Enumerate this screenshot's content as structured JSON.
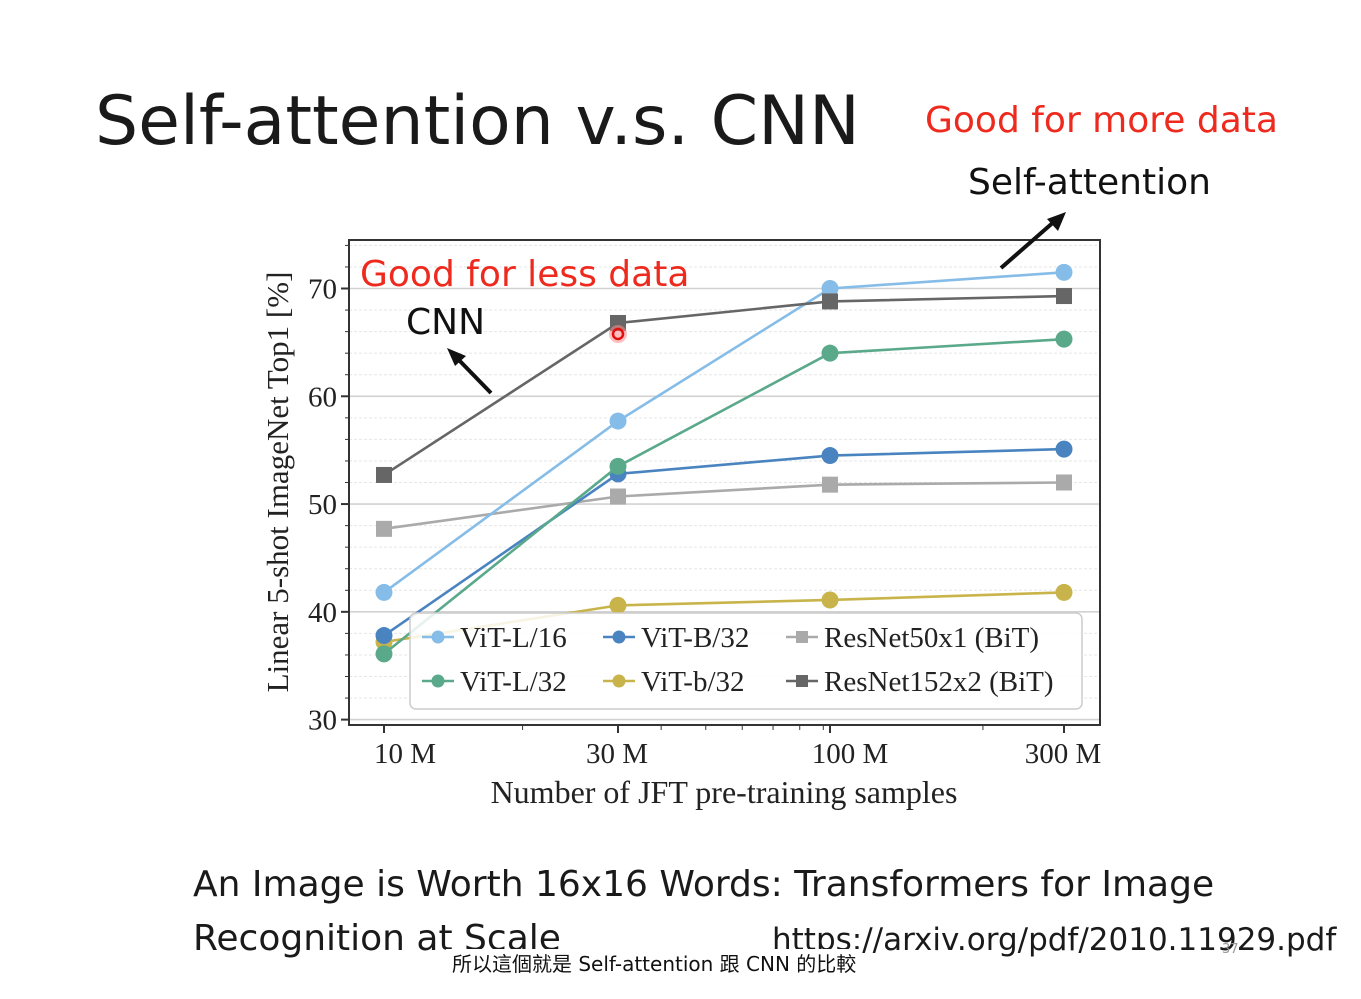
{
  "slide": {
    "title": "Self-attention v.s. CNN",
    "annotation_more_data": "Good for more data",
    "annotation_self_attention": "Self-attention",
    "annotation_less_data": "Good for less data",
    "annotation_cnn": "CNN",
    "paper_title": "An Image is Worth 16x16 Words: Transformers for Image Recognition at Scale",
    "paper_url": "https://arxiv.org/pdf/2010.11929.pdf",
    "page_number": "37",
    "subtitle": "所以這個就是 Self-attention 跟 CNN 的比較"
  },
  "colors": {
    "annotation_red": "#ee2a1e",
    "vit_l16": "#86bde8",
    "vit_b32": "#4a84c0",
    "resnet50": "#aaaaaa",
    "vit_l32": "#5aa98a",
    "vit_b32_small": "#c8b44a",
    "resnet152": "#666666"
  },
  "chart_data": {
    "type": "line",
    "title": "",
    "xlabel": "Number of JFT pre-training samples",
    "ylabel": "Linear 5-shot ImageNet Top1 [%]",
    "x_scale": "log",
    "x": [
      10,
      30,
      100,
      300
    ],
    "x_tick_labels": [
      "10 M",
      "30 M",
      "100 M",
      "300 M"
    ],
    "y_ticks": [
      30,
      40,
      50,
      60,
      70
    ],
    "ylim": [
      29.5,
      74.5
    ],
    "grid": true,
    "legend_position": "bottom-right",
    "series": [
      {
        "name": "ViT-L/16",
        "marker": "circle",
        "values": [
          41.8,
          57.7,
          70.0,
          71.5
        ]
      },
      {
        "name": "ViT-B/32",
        "marker": "circle",
        "values": [
          37.8,
          52.8,
          54.5,
          55.1
        ]
      },
      {
        "name": "ResNet50x1 (BiT)",
        "marker": "square",
        "values": [
          47.7,
          50.7,
          51.8,
          52.0
        ]
      },
      {
        "name": "ViT-L/32",
        "marker": "circle",
        "values": [
          36.1,
          53.5,
          64.0,
          65.3
        ]
      },
      {
        "name": "ViT-b/32",
        "marker": "circle",
        "values": [
          37.2,
          40.6,
          41.1,
          41.8
        ]
      },
      {
        "name": "ResNet152x2 (BiT)",
        "marker": "square",
        "values": [
          52.7,
          66.8,
          68.8,
          69.3
        ]
      }
    ]
  }
}
